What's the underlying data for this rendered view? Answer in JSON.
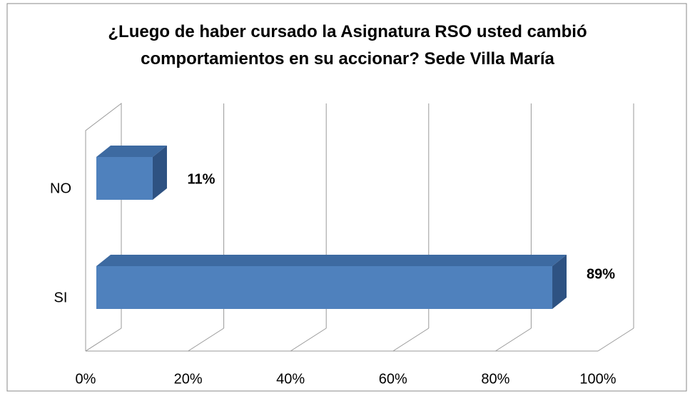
{
  "chart_data": {
    "type": "bar3d",
    "title": "¿Luego de haber cursado la Asignatura RSO usted cambió comportamientos en su accionar? Sede Villa María",
    "categories": [
      "NO",
      "SI"
    ],
    "values": [
      11,
      89
    ],
    "value_labels": [
      "11%",
      "89%"
    ],
    "color": "#4f81bd",
    "xlim": [
      0,
      100
    ],
    "xticks": [
      {
        "value": 0,
        "label": "0%"
      },
      {
        "value": 20,
        "label": "20%"
      },
      {
        "value": 40,
        "label": "40%"
      },
      {
        "value": 60,
        "label": "60%"
      },
      {
        "value": 80,
        "label": "80%"
      },
      {
        "value": 100,
        "label": "100%"
      }
    ],
    "grid": true
  }
}
